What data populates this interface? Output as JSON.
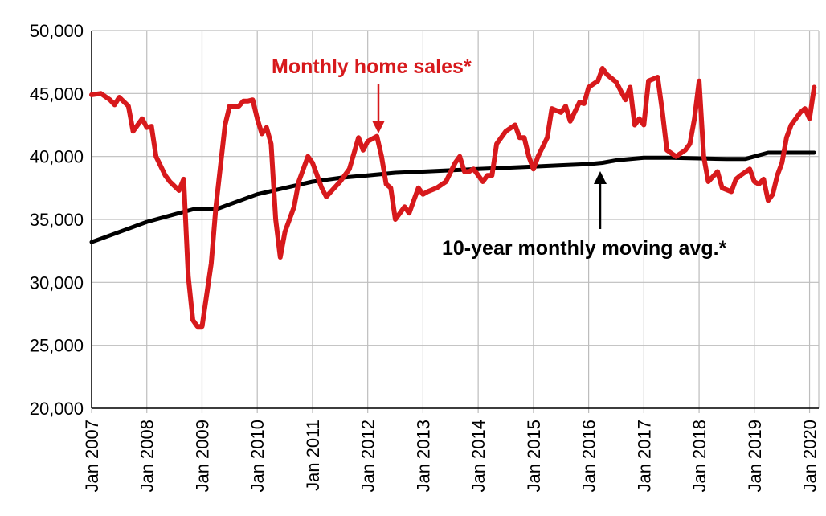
{
  "chart_data": {
    "type": "line",
    "title": "",
    "xlabel": "",
    "ylabel": "",
    "ylim": [
      20000,
      50000
    ],
    "y_ticks": [
      "20,000",
      "25,000",
      "30,000",
      "35,000",
      "40,000",
      "45,000",
      "50,000"
    ],
    "x_ticks": [
      "Jan 2007",
      "Jan 2008",
      "Jan 2009",
      "Jan 2010",
      "Jan 2011",
      "Jan 2012",
      "Jan 2013",
      "Jan 2014",
      "Jan 2015",
      "Jan 2016",
      "Jan 2017",
      "Jan 2018",
      "Jan 2019",
      "Jan 2020"
    ],
    "grid": true,
    "colors": {
      "sales": "#d7191c",
      "avg": "#000000"
    },
    "annotations": {
      "sales_label": "Monthly home sales*",
      "avg_label": "10-year monthly moving avg.*"
    },
    "series": [
      {
        "name": "Monthly home sales*",
        "x": [
          "2007-01",
          "2007-03",
          "2007-05",
          "2007-06",
          "2007-07",
          "2007-09",
          "2007-10",
          "2007-12",
          "2008-01",
          "2008-02",
          "2008-03",
          "2008-05",
          "2008-06",
          "2008-08",
          "2008-09",
          "2008-10",
          "2008-11",
          "2008-12",
          "2009-01",
          "2009-03",
          "2009-04",
          "2009-06",
          "2009-07",
          "2009-09",
          "2009-10",
          "2009-11",
          "2009-12",
          "2010-01",
          "2010-02",
          "2010-03",
          "2010-04",
          "2010-05",
          "2010-06",
          "2010-07",
          "2010-08",
          "2010-09",
          "2010-10",
          "2010-12",
          "2011-01",
          "2011-02",
          "2011-03",
          "2011-04",
          "2011-05",
          "2011-07",
          "2011-09",
          "2011-11",
          "2011-12",
          "2012-01",
          "2012-03",
          "2012-04",
          "2012-05",
          "2012-06",
          "2012-07",
          "2012-09",
          "2012-10",
          "2012-11",
          "2012-12",
          "2013-01",
          "2013-02",
          "2013-04",
          "2013-06",
          "2013-08",
          "2013-09",
          "2013-10",
          "2013-11",
          "2013-12",
          "2014-02",
          "2014-03",
          "2014-04",
          "2014-05",
          "2014-07",
          "2014-09",
          "2014-10",
          "2014-11",
          "2014-12",
          "2015-01",
          "2015-02",
          "2015-04",
          "2015-05",
          "2015-07",
          "2015-08",
          "2015-09",
          "2015-11",
          "2015-12",
          "2016-01",
          "2016-03",
          "2016-04",
          "2016-05",
          "2016-06",
          "2016-07",
          "2016-09",
          "2016-10",
          "2016-11",
          "2016-12",
          "2017-01",
          "2017-02",
          "2017-04",
          "2017-05",
          "2017-06",
          "2017-08",
          "2017-10",
          "2017-11",
          "2017-12",
          "2018-01",
          "2018-02",
          "2018-03",
          "2018-05",
          "2018-06",
          "2018-08",
          "2018-09",
          "2018-10",
          "2018-12",
          "2019-01",
          "2019-02",
          "2019-03",
          "2019-04",
          "2019-05",
          "2019-06",
          "2019-07",
          "2019-08",
          "2019-09",
          "2019-10",
          "2019-11",
          "2019-12",
          "2020-01",
          "2020-02"
        ],
        "values": [
          44900,
          45000,
          44500,
          44100,
          44700,
          44000,
          42000,
          43000,
          42300,
          42400,
          40000,
          38500,
          38000,
          37300,
          38200,
          30500,
          27000,
          26500,
          26500,
          31500,
          36000,
          42500,
          44000,
          44000,
          44400,
          44400,
          44500,
          43000,
          41800,
          42300,
          41000,
          35000,
          32000,
          34000,
          35000,
          36000,
          38000,
          40000,
          39500,
          38500,
          37500,
          36800,
          37200,
          38000,
          39000,
          41500,
          40500,
          41200,
          41600,
          40000,
          37800,
          37500,
          35000,
          36000,
          35500,
          36500,
          37500,
          37000,
          37200,
          37500,
          38000,
          39500,
          40000,
          38800,
          38800,
          39000,
          38000,
          38500,
          38500,
          41000,
          42000,
          42500,
          41500,
          41500,
          40000,
          39000,
          40000,
          41500,
          43800,
          43500,
          44000,
          42800,
          44300,
          44200,
          45500,
          46000,
          47000,
          46500,
          46200,
          45900,
          44500,
          45500,
          42500,
          43000,
          42500,
          46000,
          46300,
          43600,
          40500,
          40000,
          40500,
          41000,
          43000,
          46000,
          40000,
          38000,
          38800,
          37500,
          37200,
          38200,
          38500,
          39000,
          38000,
          37800,
          38200,
          36500,
          37000,
          38500,
          39500,
          41500,
          42500,
          43000,
          43500,
          43800,
          43000,
          45500
        ]
      },
      {
        "name": "10-year monthly moving avg.*",
        "x": [
          "2007-01",
          "2007-07",
          "2008-01",
          "2008-07",
          "2008-11",
          "2009-01",
          "2009-04",
          "2009-07",
          "2010-01",
          "2010-07",
          "2011-01",
          "2011-07",
          "2012-01",
          "2012-07",
          "2013-01",
          "2013-07",
          "2014-01",
          "2014-07",
          "2015-01",
          "2015-07",
          "2016-01",
          "2016-04",
          "2016-07",
          "2017-01",
          "2017-07",
          "2018-01",
          "2018-07",
          "2018-11",
          "2019-01",
          "2019-04",
          "2019-07",
          "2020-01",
          "2020-02"
        ],
        "values": [
          33200,
          34000,
          34800,
          35400,
          35800,
          35800,
          35800,
          36200,
          37000,
          37500,
          38000,
          38300,
          38500,
          38700,
          38800,
          38900,
          39000,
          39100,
          39200,
          39300,
          39400,
          39500,
          39700,
          39900,
          39900,
          39850,
          39800,
          39800,
          40000,
          40300,
          40300,
          40300,
          40300
        ]
      }
    ]
  }
}
